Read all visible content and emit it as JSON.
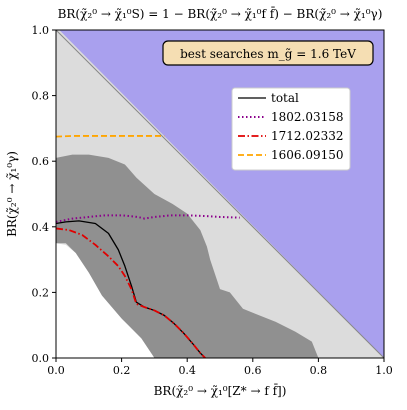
{
  "chart_data": {
    "type": "line",
    "title": "BR(χ̃₂⁰ → χ̃₁⁰S) = 1 − BR(χ̃₂⁰ → χ̃₁⁰f f̄) − BR(χ̃₂⁰ → χ̃₁⁰γ)",
    "xlabel": "BR(χ̃₂⁰ → χ̃₁⁰[Z* → f f̄])",
    "ylabel": "BR(χ̃₂⁰ → χ̃₁⁰γ)",
    "xlim": [
      0.0,
      1.0
    ],
    "ylim": [
      0.0,
      1.0
    ],
    "xticks": [
      "0.0",
      "0.2",
      "0.4",
      "0.6",
      "0.8",
      "1.0"
    ],
    "yticks": [
      "0.0",
      "0.2",
      "0.4",
      "0.6",
      "0.8",
      "1.0"
    ],
    "grid": false,
    "legend_position": "upper-right",
    "annotation": "best searches m_g̃ = 1.6 TeV",
    "colors": {
      "unphysical": "#a9a0ee",
      "light_region": "#dcdcdc",
      "dark_region": "#909090",
      "total": "#000000",
      "s1802": "#8b008b",
      "s1712": "#e00000",
      "s1606": "#ffa500",
      "annotation_box": "#f5deb3"
    },
    "regions": [
      {
        "style": "light",
        "points": [
          [
            0,
            0
          ],
          [
            0,
            1
          ],
          [
            0.01,
            1
          ],
          [
            1,
            0
          ]
        ]
      },
      {
        "style": "dark",
        "points": [
          [
            0,
            0.35
          ],
          [
            0,
            0.61
          ],
          [
            0.05,
            0.62
          ],
          [
            0.1,
            0.62
          ],
          [
            0.16,
            0.61
          ],
          [
            0.21,
            0.59
          ],
          [
            0.245,
            0.55
          ],
          [
            0.3,
            0.5
          ],
          [
            0.355,
            0.47
          ],
          [
            0.4,
            0.44
          ],
          [
            0.44,
            0.39
          ],
          [
            0.46,
            0.34
          ],
          [
            0.47,
            0.3
          ],
          [
            0.49,
            0.24
          ],
          [
            0.5,
            0.21
          ],
          [
            0.53,
            0.2
          ],
          [
            0.57,
            0.15
          ],
          [
            0.62,
            0.13
          ],
          [
            0.67,
            0.11
          ],
          [
            0.73,
            0.08
          ],
          [
            0.78,
            0.05
          ],
          [
            0.8,
            0.0
          ],
          [
            0.3,
            0.0
          ],
          [
            0.26,
            0.06
          ],
          [
            0.2,
            0.12
          ],
          [
            0.14,
            0.19
          ],
          [
            0.1,
            0.26
          ],
          [
            0.06,
            0.32
          ],
          [
            0.03,
            0.35
          ]
        ]
      },
      {
        "style": "white",
        "points": [
          [
            0,
            0.0
          ],
          [
            0,
            0.35
          ],
          [
            0.03,
            0.345
          ],
          [
            0.06,
            0.32
          ],
          [
            0.1,
            0.26
          ],
          [
            0.14,
            0.19
          ],
          [
            0.2,
            0.12
          ],
          [
            0.26,
            0.06
          ],
          [
            0.3,
            0.0
          ]
        ]
      }
    ],
    "series": [
      {
        "name": "total",
        "style": "solid",
        "x": [
          0.0,
          0.03,
          0.07,
          0.12,
          0.16,
          0.19,
          0.21,
          0.23,
          0.245,
          0.27,
          0.3,
          0.33,
          0.36,
          0.39,
          0.42,
          0.44,
          0.455
        ],
        "y": [
          0.41,
          0.415,
          0.418,
          0.41,
          0.38,
          0.33,
          0.28,
          0.22,
          0.17,
          0.155,
          0.145,
          0.13,
          0.105,
          0.075,
          0.04,
          0.015,
          0.0
        ]
      },
      {
        "name": "1802.03158",
        "style": "dotted",
        "x": [
          0.0,
          0.05,
          0.1,
          0.15,
          0.2,
          0.25,
          0.27,
          0.3,
          0.35,
          0.4,
          0.45,
          0.5,
          0.56
        ],
        "y": [
          0.415,
          0.425,
          0.43,
          0.435,
          0.435,
          0.43,
          0.425,
          0.43,
          0.435,
          0.435,
          0.433,
          0.43,
          0.428
        ]
      },
      {
        "name": "1712.02332",
        "style": "dashdot",
        "x": [
          0.0,
          0.04,
          0.08,
          0.12,
          0.16,
          0.19,
          0.21,
          0.23,
          0.245,
          0.27,
          0.3,
          0.33,
          0.36,
          0.39,
          0.42,
          0.44,
          0.455
        ],
        "y": [
          0.395,
          0.39,
          0.375,
          0.345,
          0.31,
          0.28,
          0.25,
          0.21,
          0.165,
          0.155,
          0.145,
          0.13,
          0.105,
          0.075,
          0.04,
          0.015,
          0.0
        ]
      },
      {
        "name": "1606.09150",
        "style": "dashed",
        "x": [
          0.0,
          0.05,
          0.1,
          0.15,
          0.2,
          0.25,
          0.3,
          0.33
        ],
        "y": [
          0.675,
          0.677,
          0.677,
          0.677,
          0.677,
          0.677,
          0.677,
          0.677
        ]
      }
    ]
  }
}
